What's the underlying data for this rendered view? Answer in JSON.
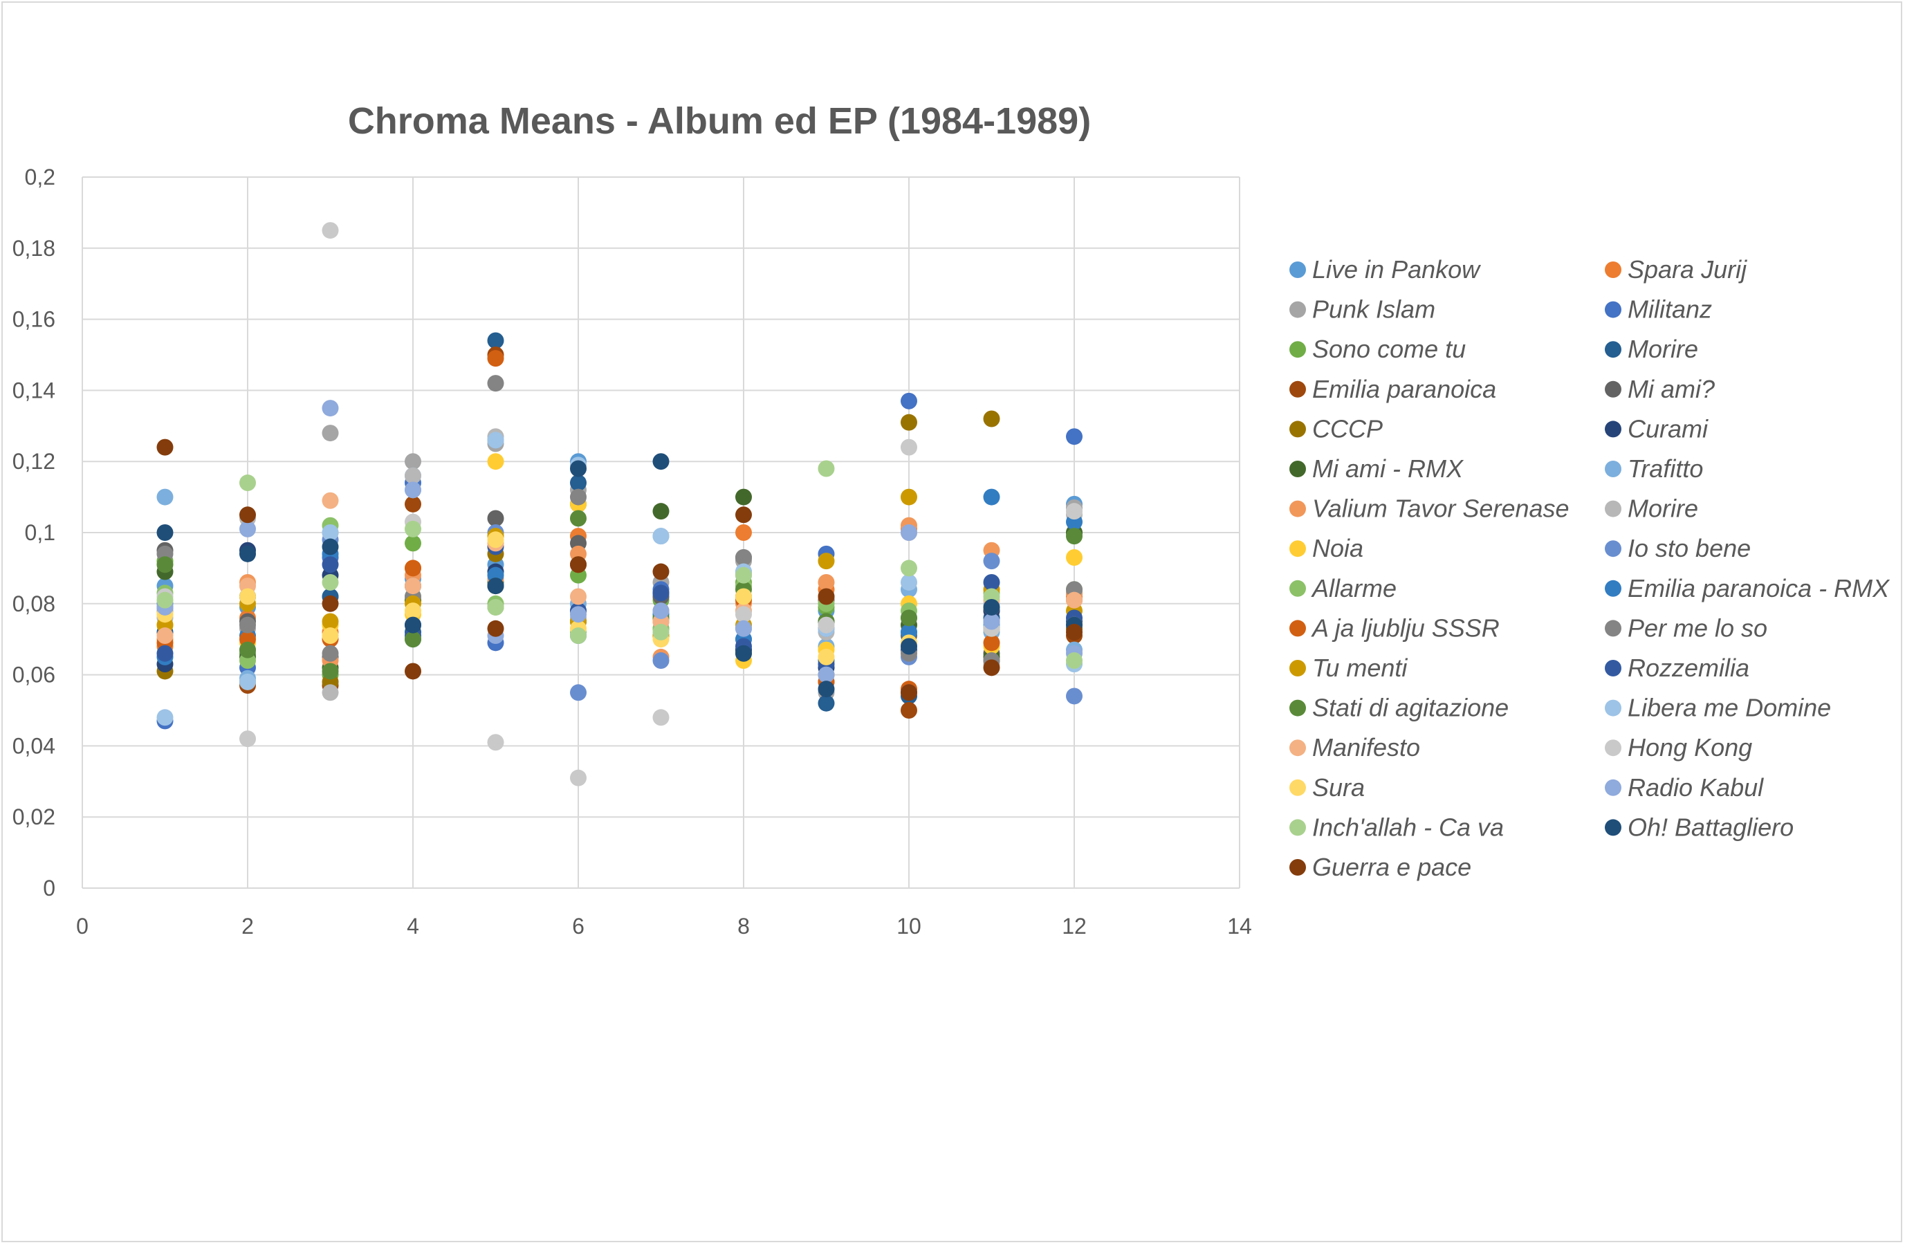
{
  "chart_data": {
    "type": "scatter",
    "title": "Chroma Means - Album ed EP (1984-1989)",
    "xlabel": "",
    "ylabel": "",
    "xlim": [
      0,
      14
    ],
    "ylim": [
      0,
      0.2
    ],
    "x_ticks": [
      0,
      2,
      4,
      6,
      8,
      10,
      12,
      14
    ],
    "y_ticks": [
      0,
      0.02,
      0.04,
      0.06,
      0.08,
      0.1,
      0.12,
      0.14,
      0.16,
      0.18,
      0.2
    ],
    "x_tick_labels": [
      "0",
      "2",
      "4",
      "6",
      "8",
      "10",
      "12",
      "14"
    ],
    "y_tick_labels": [
      "0",
      "0,02",
      "0,04",
      "0,06",
      "0,08",
      "0,1",
      "0,12",
      "0,14",
      "0,16",
      "0,18",
      "0,2"
    ],
    "grid": true,
    "legend_position": "right",
    "x": [
      1,
      2,
      3,
      4,
      5,
      6,
      7,
      8,
      9,
      10,
      11,
      12
    ],
    "series": [
      {
        "name": "Live in Pankow",
        "color": "#5B9BD5",
        "values": [
          0.085,
          0.079,
          0.082,
          0.087,
          0.091,
          0.12,
          0.082,
          0.089,
          0.078,
          0.072,
          0.074,
          0.108
        ]
      },
      {
        "name": "Spara Jurij",
        "color": "#ED7D31",
        "values": [
          0.068,
          0.076,
          0.072,
          0.09,
          0.085,
          0.099,
          0.078,
          0.1,
          0.084,
          0.101,
          0.078,
          0.082
        ]
      },
      {
        "name": "Punk Islam",
        "color": "#A5A5A5",
        "values": [
          0.078,
          0.073,
          0.128,
          0.12,
          0.125,
          0.112,
          0.086,
          0.092,
          0.055,
          0.069,
          0.073,
          0.107
        ]
      },
      {
        "name": "Militanz",
        "color": "#4472C4",
        "values": [
          0.047,
          0.062,
          0.093,
          0.114,
          0.069,
          0.071,
          0.084,
          0.07,
          0.094,
          0.137,
          0.075,
          0.127
        ]
      },
      {
        "name": "Sono come tu",
        "color": "#70AD47",
        "values": [
          0.092,
          0.066,
          0.06,
          0.097,
          0.079,
          0.088,
          0.081,
          0.086,
          0.079,
          0.076,
          0.079,
          0.1
        ]
      },
      {
        "name": "Morire",
        "color": "#255E91",
        "values": [
          0.072,
          0.082,
          0.082,
          0.072,
          0.154,
          0.114,
          0.076,
          0.067,
          0.052,
          0.054,
          0.076,
          0.073
        ]
      },
      {
        "name": "Emilia paranoica",
        "color": "#9E480E",
        "values": [
          0.079,
          0.057,
          0.057,
          0.108,
          0.15,
          0.091,
          0.073,
          0.082,
          0.058,
          0.05,
          0.064,
          0.071
        ]
      },
      {
        "name": "Mi ami?",
        "color": "#636363",
        "values": [
          0.095,
          0.075,
          0.065,
          0.085,
          0.104,
          0.097,
          0.082,
          0.093,
          0.081,
          0.071,
          0.066,
          0.083
        ]
      },
      {
        "name": "CCCP",
        "color": "#997300",
        "values": [
          0.061,
          0.058,
          0.058,
          0.081,
          0.094,
          0.075,
          0.071,
          0.066,
          0.06,
          0.131,
          0.132,
          0.073
        ]
      },
      {
        "name": "Curami",
        "color": "#264478",
        "values": [
          0.063,
          0.095,
          0.088,
          0.074,
          0.089,
          0.075,
          0.083,
          0.067,
          0.062,
          0.067,
          0.078,
          0.075
        ]
      },
      {
        "name": "Mi ami - RMX",
        "color": "#43682B",
        "values": [
          0.089,
          0.065,
          0.062,
          0.081,
          0.086,
          0.108,
          0.106,
          0.11,
          0.075,
          0.074,
          0.065,
          0.1
        ]
      },
      {
        "name": "Trafitto",
        "color": "#7CAFDD",
        "values": [
          0.11,
          0.059,
          0.1,
          0.116,
          0.126,
          0.08,
          0.099,
          0.088,
          0.068,
          0.084,
          0.072,
          0.067
        ]
      },
      {
        "name": "Valium Tavor Serenase",
        "color": "#F1975A",
        "values": [
          0.07,
          0.086,
          0.064,
          0.088,
          0.087,
          0.094,
          0.065,
          0.08,
          0.086,
          0.102,
          0.095,
          0.083
        ]
      },
      {
        "name": "Morire",
        "color": "#B7B7B7",
        "values": [
          0.076,
          0.104,
          0.055,
          0.116,
          0.127,
          0.076,
          0.073,
          0.078,
          0.072,
          0.068,
          0.063,
          0.105
        ]
      },
      {
        "name": "Noia",
        "color": "#FFCD33",
        "values": [
          0.074,
          0.069,
          0.074,
          0.077,
          0.12,
          0.108,
          0.076,
          0.064,
          0.067,
          0.08,
          0.068,
          0.093
        ]
      },
      {
        "name": "Io sto bene",
        "color": "#698ED0",
        "values": [
          0.08,
          0.067,
          0.098,
          0.07,
          0.1,
          0.055,
          0.064,
          0.073,
          0.073,
          0.065,
          0.092,
          0.054
        ]
      },
      {
        "name": "Allarme",
        "color": "#8CC168",
        "values": [
          0.083,
          0.064,
          0.102,
          0.082,
          0.08,
          0.072,
          0.073,
          0.085,
          0.08,
          0.078,
          0.083,
          0.084
        ]
      },
      {
        "name": "Emilia paranoica - RMX",
        "color": "#327DC2",
        "values": [
          0.065,
          0.071,
          0.094,
          0.085,
          0.088,
          0.078,
          0.077,
          0.07,
          0.064,
          0.072,
          0.11,
          0.103
        ]
      },
      {
        "name": "A ja ljublju SSSR",
        "color": "#D26012",
        "values": [
          0.069,
          0.07,
          0.07,
          0.09,
          0.149,
          0.091,
          0.075,
          0.081,
          0.058,
          0.056,
          0.069,
          0.081
        ]
      },
      {
        "name": "Per me lo so",
        "color": "#848484",
        "values": [
          0.094,
          0.074,
          0.066,
          0.082,
          0.142,
          0.11,
          0.083,
          0.093,
          0.082,
          0.066,
          0.064,
          0.084
        ]
      },
      {
        "name": "Tu menti",
        "color": "#CC9A00",
        "values": [
          0.074,
          0.08,
          0.075,
          0.08,
          0.099,
          0.075,
          0.071,
          0.074,
          0.092,
          0.11,
          0.084,
          0.078
        ]
      },
      {
        "name": "Rozzemilia",
        "color": "#335AA1",
        "values": [
          0.066,
          0.082,
          0.091,
          0.071,
          0.096,
          0.078,
          0.083,
          0.068,
          0.063,
          0.055,
          0.086,
          0.076
        ]
      },
      {
        "name": "Stati di agitazione",
        "color": "#5A8A39",
        "values": [
          0.091,
          0.067,
          0.061,
          0.07,
          0.085,
          0.104,
          0.076,
          0.084,
          0.075,
          0.076,
          0.073,
          0.099
        ]
      },
      {
        "name": "Libera me Domine",
        "color": "#9DC3E6",
        "values": [
          0.048,
          0.058,
          0.1,
          0.112,
          0.126,
          0.119,
          0.099,
          0.089,
          0.073,
          0.086,
          0.08,
          0.063
        ]
      },
      {
        "name": "Manifesto",
        "color": "#F4B183",
        "values": [
          0.071,
          0.085,
          0.109,
          0.085,
          0.097,
          0.082,
          0.075,
          0.078,
          0.082,
          0.1,
          0.081,
          0.081
        ]
      },
      {
        "name": "Hong Kong",
        "color": "#C9C9C9",
        "values": [
          0.082,
          0.042,
          0.185,
          0.103,
          0.041,
          0.031,
          0.048,
          0.077,
          0.074,
          0.124,
          0.073,
          0.106
        ]
      },
      {
        "name": "Sura",
        "color": "#FFD966",
        "values": [
          0.077,
          0.082,
          0.071,
          0.078,
          0.098,
          0.073,
          0.07,
          0.082,
          0.065,
          0.069,
          0.079,
          0.074
        ]
      },
      {
        "name": "Radio Kabul",
        "color": "#8FAADC",
        "values": [
          0.079,
          0.101,
          0.135,
          0.112,
          0.071,
          0.077,
          0.078,
          0.073,
          0.06,
          0.1,
          0.075,
          0.066
        ]
      },
      {
        "name": "Inch'allah - Ca va",
        "color": "#A9D18E",
        "values": [
          0.081,
          0.114,
          0.086,
          0.101,
          0.079,
          0.071,
          0.072,
          0.088,
          0.118,
          0.09,
          0.082,
          0.064
        ]
      },
      {
        "name": "Oh! Battagliero",
        "color": "#1F4E79",
        "values": [
          0.1,
          0.094,
          0.096,
          0.074,
          0.085,
          0.118,
          0.12,
          0.066,
          0.056,
          0.068,
          0.079,
          0.074
        ]
      },
      {
        "name": "Guerra e pace",
        "color": "#843C0C",
        "values": [
          0.124,
          0.105,
          0.08,
          0.061,
          0.073,
          0.091,
          0.089,
          0.105,
          0.082,
          0.055,
          0.062,
          0.072
        ]
      }
    ]
  }
}
